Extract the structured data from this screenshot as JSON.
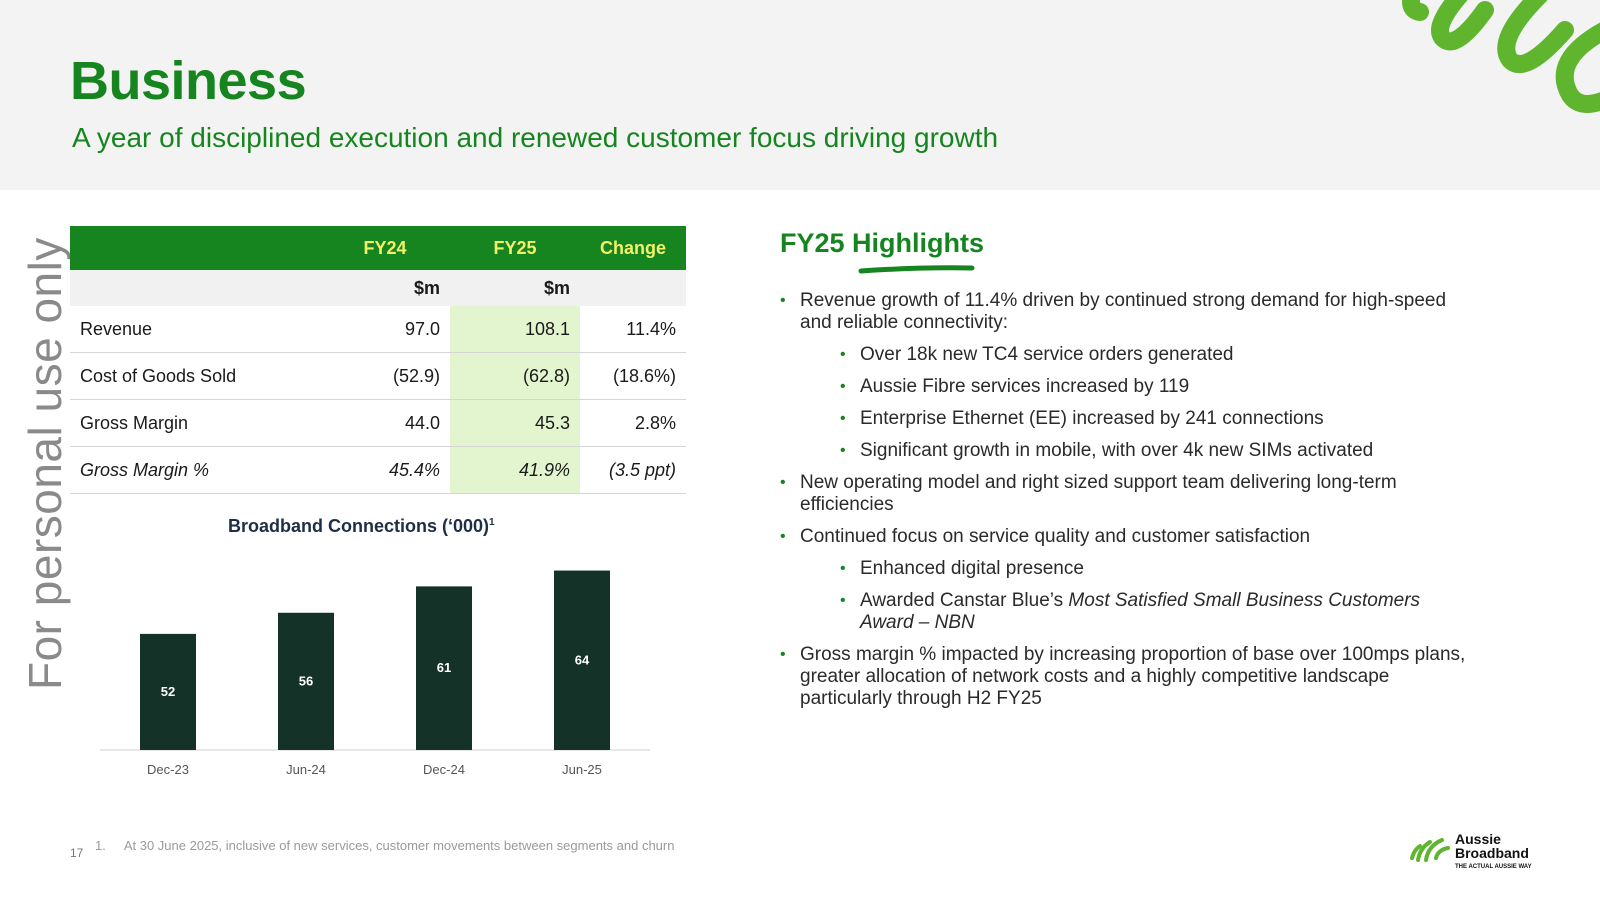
{
  "header": {
    "title": "Business",
    "subtitle": "A year of disciplined execution and renewed customer focus driving growth"
  },
  "watermark": "For personal use only",
  "table": {
    "headers": [
      "",
      "FY24",
      "FY25",
      "Change"
    ],
    "units": [
      "",
      "$m",
      "$m",
      ""
    ],
    "rows": [
      {
        "label": "Revenue",
        "fy24": "97.0",
        "fy25": "108.1",
        "change": "11.4%"
      },
      {
        "label": "Cost of Goods Sold",
        "fy24": "(52.9)",
        "fy25": "(62.8)",
        "change": "(18.6%)"
      },
      {
        "label": "Gross Margin",
        "fy24": "44.0",
        "fy25": "45.3",
        "change": "2.8%"
      },
      {
        "label": "Gross Margin %",
        "fy24": "45.4%",
        "fy25": "41.9%",
        "change": "(3.5 ppt)"
      }
    ]
  },
  "chart_data": {
    "type": "bar",
    "title": "Broadband Connections (‘000)",
    "title_footnote": "1",
    "categories": [
      "Dec-23",
      "Jun-24",
      "Dec-24",
      "Jun-25"
    ],
    "values": [
      52,
      56,
      61,
      64
    ],
    "xlabel": "",
    "ylabel": "",
    "ylim": [
      30,
      66
    ],
    "bar_color": "#153228",
    "label_color": "#ffffff"
  },
  "highlights": {
    "title": "FY25 Highlights",
    "bullets": [
      {
        "level": 1,
        "text": "Revenue growth of 11.4% driven by continued strong demand for high-speed and reliable connectivity:"
      },
      {
        "level": 2,
        "text": "Over 18k new TC4 service orders generated"
      },
      {
        "level": 2,
        "text": "Aussie Fibre services increased by 119"
      },
      {
        "level": 2,
        "text": "Enterprise Ethernet (EE) increased by 241 connections"
      },
      {
        "level": 2,
        "text": "Significant growth in mobile, with over 4k new SIMs activated"
      },
      {
        "level": 1,
        "text": "New operating model and right sized support team delivering long-term efficiencies"
      },
      {
        "level": 1,
        "text": "Continued focus on service quality and customer satisfaction"
      },
      {
        "level": 2,
        "text": "Enhanced digital presence"
      },
      {
        "level": 2,
        "text": "Awarded Canstar Blue’s ",
        "italic": "Most Satisfied Small Business Customers Award – NBN"
      },
      {
        "level": 1,
        "text": "Gross margin % impacted by increasing proportion of base over 100mps plans, greater allocation of network costs and a highly competitive landscape particularly through H2 FY25"
      }
    ]
  },
  "footnote": {
    "number": "1.",
    "text": "At 30 June 2025, inclusive of new services, customer movements between segments and churn"
  },
  "page_number": "17",
  "brand": {
    "line1": "Aussie",
    "line2": "Broadband",
    "tagline": "THE ACTUAL AUSSIE WAY"
  },
  "colors": {
    "brand_green": "#17851f",
    "header_yellow": "#f3f06a",
    "highlight_cell": "#e3f5cf",
    "bar": "#153228"
  }
}
